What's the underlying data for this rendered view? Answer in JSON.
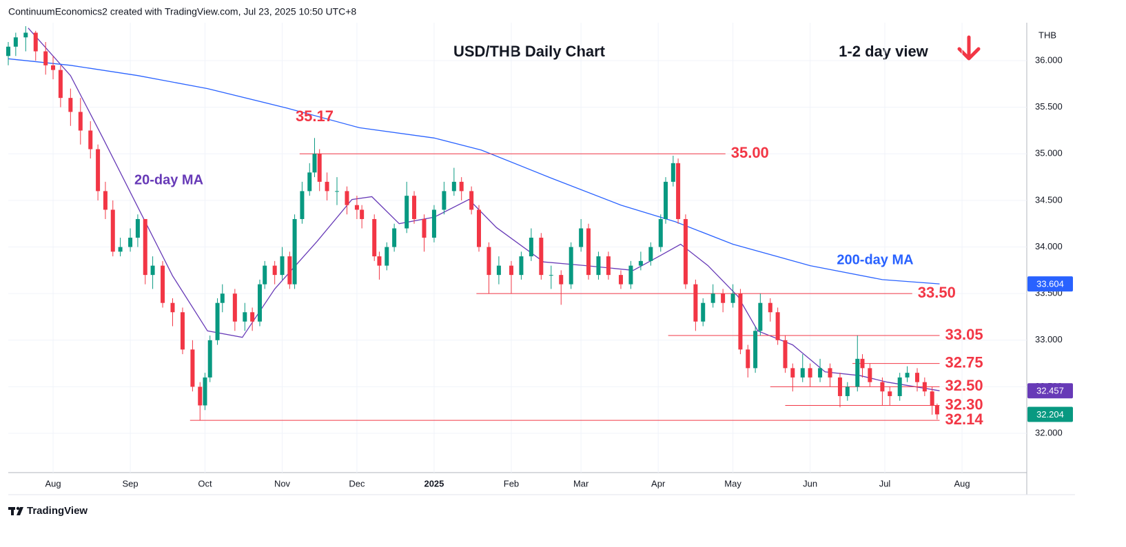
{
  "header": "ContinuumEconomics2 created with TradingView.com, Jul 23, 2025 10:50 UTC+8",
  "footer": "TradingView",
  "chart_data": {
    "type": "candlestick",
    "title": "USD/THB Daily Chart",
    "subtitle": "1-2 day view",
    "currency": "THB",
    "up_color": "#089981",
    "down_color": "#f23645",
    "grid": true,
    "xlim": [
      -171,
      238
    ],
    "xticks": [
      {
        "value": -153,
        "label": "Aug"
      },
      {
        "value": -122,
        "label": "Sep"
      },
      {
        "value": -92,
        "label": "Oct"
      },
      {
        "value": -61,
        "label": "Nov"
      },
      {
        "value": -31,
        "label": "Dec"
      },
      {
        "value": 0,
        "label": "2025"
      },
      {
        "value": 31,
        "label": "Feb"
      },
      {
        "value": 59,
        "label": "Mar"
      },
      {
        "value": 90,
        "label": "Apr"
      },
      {
        "value": 120,
        "label": "May"
      },
      {
        "value": 151,
        "label": "Jun"
      },
      {
        "value": 181,
        "label": "Jul"
      },
      {
        "value": 212,
        "label": "Aug"
      }
    ],
    "ylim": [
      31.579,
      36.407
    ],
    "yticks": [
      {
        "value": 32,
        "label": "32.000"
      },
      {
        "value": 32.5,
        "label": "32.500"
      },
      {
        "value": 33,
        "label": "33.000"
      },
      {
        "value": 33.5,
        "label": "33.500"
      },
      {
        "value": 34,
        "label": "34.000"
      },
      {
        "value": 34.5,
        "label": "34.500"
      },
      {
        "value": 35,
        "label": "35.000"
      },
      {
        "value": 35.5,
        "label": "35.500"
      },
      {
        "value": 36,
        "label": "36.000"
      }
    ],
    "x": [
      -171,
      -168,
      -164,
      -160,
      -156,
      -153,
      -150,
      -146,
      -142,
      -138,
      -135,
      -132,
      -129,
      -126,
      -122,
      -119,
      -116,
      -113,
      -109,
      -105,
      -101,
      -97,
      -94,
      -92,
      -90,
      -87,
      -85,
      -80,
      -76,
      -73,
      -70,
      -68,
      -64,
      -61,
      -58,
      -56,
      -53,
      -50,
      -48,
      -46,
      -43,
      -39,
      -35,
      -31,
      -29,
      -24,
      -22,
      -19,
      -16,
      -11,
      -8,
      -4,
      0,
      4,
      8,
      11,
      15,
      18,
      22,
      26,
      31,
      35,
      39,
      43,
      47,
      51,
      55,
      59,
      62,
      66,
      70,
      75,
      79,
      83,
      87,
      91,
      93,
      96,
      98,
      101,
      105,
      108,
      112,
      116,
      120,
      123,
      126,
      129,
      131,
      135,
      138,
      141,
      144,
      148,
      151,
      155,
      159,
      163,
      166,
      170,
      172,
      175,
      180,
      183,
      187,
      190,
      194,
      197,
      200,
      202
    ],
    "open": [
      36.05,
      36.15,
      36.25,
      36.3,
      36.1,
      35.95,
      35.9,
      35.6,
      35.45,
      35.25,
      35.05,
      34.6,
      34.4,
      33.95,
      34.0,
      34.1,
      34.3,
      33.7,
      33.8,
      33.4,
      33.3,
      32.9,
      32.5,
      32.3,
      32.6,
      33.0,
      33.4,
      33.5,
      33.2,
      33.3,
      33.2,
      33.6,
      33.8,
      33.7,
      33.9,
      33.6,
      34.3,
      34.6,
      34.8,
      35.0,
      34.7,
      34.6,
      34.6,
      34.45,
      34.4,
      34.3,
      33.9,
      33.8,
      34.0,
      34.2,
      34.55,
      34.3,
      34.1,
      34.4,
      34.6,
      34.7,
      34.6,
      34.4,
      34.0,
      33.7,
      33.8,
      33.7,
      33.9,
      34.1,
      33.7,
      33.7,
      33.6,
      34.0,
      34.2,
      33.7,
      33.9,
      33.7,
      33.6,
      33.8,
      33.85,
      34.0,
      34.3,
      34.7,
      34.9,
      34.3,
      33.6,
      33.2,
      33.4,
      33.5,
      33.4,
      33.5,
      32.9,
      32.7,
      33.1,
      33.4,
      33.3,
      33.0,
      32.7,
      32.6,
      32.7,
      32.6,
      32.7,
      32.6,
      32.4,
      32.5,
      32.8,
      32.7,
      32.55,
      32.45,
      32.4,
      32.6,
      32.65,
      32.55,
      32.45,
      32.3
    ],
    "high": [
      36.2,
      36.3,
      36.37,
      36.32,
      36.2,
      36.05,
      35.95,
      35.7,
      35.6,
      35.35,
      35.1,
      34.7,
      34.5,
      34.1,
      34.2,
      34.35,
      34.3,
      33.9,
      33.85,
      33.45,
      33.35,
      33.0,
      32.55,
      32.65,
      33.05,
      33.45,
      33.6,
      33.55,
      33.4,
      33.35,
      33.65,
      33.85,
      33.85,
      34.0,
      33.95,
      34.35,
      34.7,
      34.9,
      35.17,
      35.05,
      34.8,
      34.75,
      34.65,
      34.55,
      34.45,
      34.35,
      33.95,
      34.05,
      34.25,
      34.7,
      34.6,
      34.35,
      34.45,
      34.7,
      34.85,
      34.75,
      34.65,
      34.45,
      34.05,
      33.9,
      33.85,
      33.95,
      34.2,
      34.15,
      33.8,
      33.75,
      34.05,
      34.3,
      34.25,
      33.95,
      33.95,
      33.75,
      33.85,
      33.95,
      34.05,
      34.35,
      34.75,
      34.98,
      34.95,
      34.35,
      33.65,
      33.45,
      33.6,
      33.55,
      33.6,
      33.55,
      32.95,
      33.15,
      33.5,
      33.45,
      33.35,
      33.05,
      32.75,
      32.85,
      32.75,
      32.8,
      32.75,
      32.65,
      32.55,
      33.05,
      32.85,
      32.75,
      32.6,
      32.5,
      32.65,
      32.72,
      32.7,
      32.6,
      32.5,
      32.32
    ],
    "low": [
      35.95,
      36.05,
      36.1,
      36.0,
      35.85,
      35.8,
      35.5,
      35.3,
      35.1,
      34.95,
      34.5,
      34.3,
      33.9,
      33.9,
      33.95,
      34.0,
      33.6,
      33.55,
      33.35,
      33.15,
      32.85,
      32.45,
      32.14,
      32.25,
      32.55,
      32.95,
      33.3,
      33.1,
      33.1,
      33.1,
      33.15,
      33.55,
      33.6,
      33.65,
      33.55,
      33.55,
      34.25,
      34.55,
      34.75,
      34.6,
      34.5,
      34.45,
      34.35,
      34.3,
      34.2,
      33.85,
      33.65,
      33.75,
      33.95,
      34.15,
      34.25,
      33.95,
      34.05,
      34.35,
      34.55,
      34.5,
      34.35,
      33.95,
      33.5,
      33.6,
      33.5,
      33.65,
      33.85,
      33.65,
      33.55,
      33.38,
      33.55,
      33.95,
      33.65,
      33.65,
      33.65,
      33.55,
      33.55,
      33.75,
      33.8,
      33.95,
      34.25,
      34.65,
      34.25,
      33.55,
      33.1,
      33.15,
      33.35,
      33.3,
      33.35,
      32.85,
      32.6,
      32.65,
      33.05,
      33.2,
      32.95,
      32.65,
      32.45,
      32.55,
      32.5,
      32.55,
      32.5,
      32.28,
      32.35,
      32.45,
      32.6,
      32.5,
      32.3,
      32.3,
      32.35,
      32.55,
      32.45,
      32.4,
      32.2,
      32.15
    ],
    "close": [
      36.15,
      36.25,
      36.3,
      36.1,
      35.95,
      35.9,
      35.6,
      35.45,
      35.25,
      35.05,
      34.6,
      34.4,
      33.95,
      34.0,
      34.1,
      34.3,
      33.7,
      33.8,
      33.4,
      33.3,
      32.9,
      32.5,
      32.3,
      32.6,
      33.0,
      33.4,
      33.5,
      33.2,
      33.3,
      33.2,
      33.6,
      33.8,
      33.7,
      33.9,
      33.6,
      34.3,
      34.6,
      34.8,
      35.0,
      34.7,
      34.6,
      34.6,
      34.45,
      34.4,
      34.3,
      33.9,
      33.8,
      34.0,
      34.2,
      34.55,
      34.3,
      34.1,
      34.4,
      34.6,
      34.7,
      34.6,
      34.4,
      34.0,
      33.7,
      33.8,
      33.7,
      33.9,
      34.1,
      33.7,
      33.7,
      33.6,
      34.0,
      34.2,
      33.7,
      33.9,
      33.7,
      33.6,
      33.8,
      33.85,
      34.0,
      34.3,
      34.7,
      34.9,
      34.3,
      33.6,
      33.2,
      33.4,
      33.5,
      33.4,
      33.5,
      32.9,
      32.7,
      33.1,
      33.4,
      33.3,
      33.0,
      32.7,
      32.6,
      32.7,
      32.6,
      32.7,
      32.6,
      32.4,
      32.5,
      32.8,
      32.7,
      32.55,
      32.45,
      32.4,
      32.6,
      32.65,
      32.55,
      32.45,
      32.3,
      32.204
    ],
    "lines": [
      {
        "name": "20-day MA",
        "color": "#673ab7",
        "x": [
          -163,
          -146,
          -133,
          -119,
          -105,
          -91,
          -77,
          -64,
          -47,
          -33,
          -25,
          -14,
          0,
          14,
          25,
          44,
          61,
          80,
          91,
          99,
          110,
          122,
          130,
          144,
          157,
          171,
          182,
          203
        ],
        "values": [
          36.35,
          35.84,
          35.17,
          34.43,
          33.69,
          33.1,
          33.03,
          33.55,
          34.06,
          34.51,
          34.54,
          34.25,
          34.32,
          34.51,
          34.21,
          33.84,
          33.8,
          33.75,
          33.91,
          34.03,
          33.8,
          33.47,
          33.1,
          32.95,
          32.66,
          32.62,
          32.55,
          32.457
        ]
      },
      {
        "name": "200-day MA",
        "color": "#2962ff",
        "x": [
          -171,
          -146,
          -119,
          -91,
          -59,
          -30,
          0,
          19,
          47,
          75,
          97,
          120,
          151,
          180,
          203
        ],
        "values": [
          36.02,
          35.95,
          35.84,
          35.7,
          35.49,
          35.28,
          35.17,
          35.04,
          34.74,
          34.45,
          34.27,
          34.03,
          33.8,
          33.65,
          33.604
        ]
      }
    ],
    "price_tags": [
      {
        "value": 33.604,
        "color": "#2962ff"
      },
      {
        "value": 32.457,
        "color": "#673ab7"
      },
      {
        "value": 32.204,
        "color": "#089981"
      }
    ],
    "levels": [
      {
        "value": 35,
        "label": "35.00",
        "from": -54,
        "to": 117
      },
      {
        "value": 33.5,
        "label": "33.50",
        "from": 17,
        "to": 192
      },
      {
        "value": 33.05,
        "label": "33.05",
        "from": 94,
        "to": 203
      },
      {
        "value": 32.75,
        "label": "32.75",
        "from": 168,
        "to": 203
      },
      {
        "value": 32.5,
        "label": "32.50",
        "from": 135,
        "to": 203
      },
      {
        "value": 32.3,
        "label": "32.30",
        "from": 141,
        "to": 203
      },
      {
        "value": 32.14,
        "label": "32.14",
        "from": -98,
        "to": 203
      }
    ],
    "annotations": [
      {
        "value": 35.17,
        "x": -48
      }
    ]
  }
}
